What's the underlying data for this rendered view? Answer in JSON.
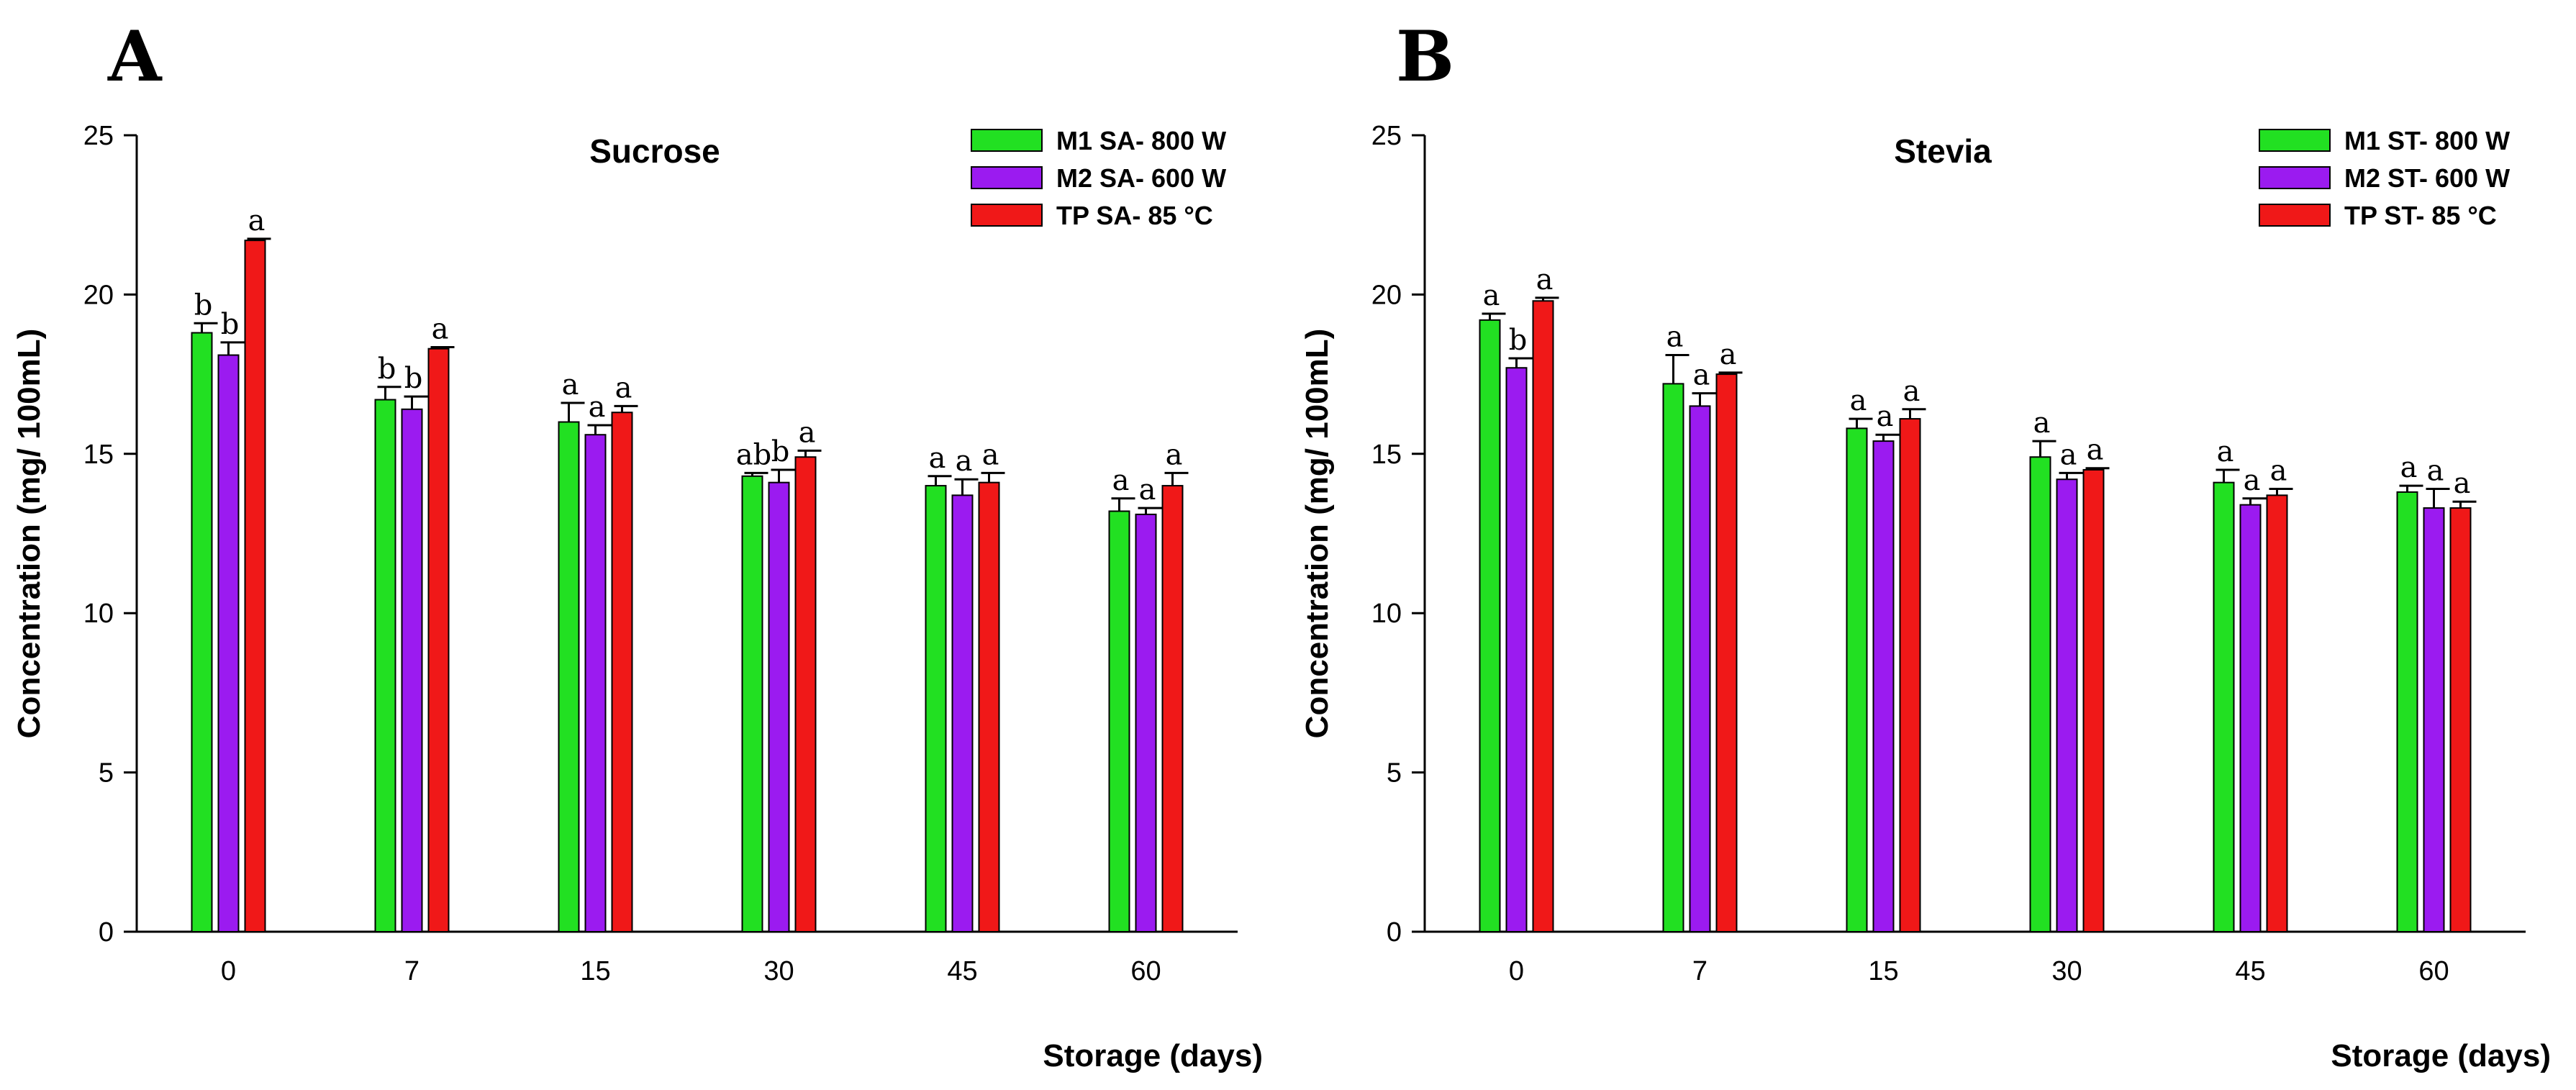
{
  "chart_data": [
    {
      "type": "bar",
      "panel_label": "A",
      "title": "Sucrose",
      "xlabel": "Storage (days)",
      "ylabel": "Concentration (mg/ 100mL)",
      "ylim": [
        0,
        25
      ],
      "yticks": [
        "0",
        "5",
        "10",
        "15",
        "20",
        "25"
      ],
      "categories": [
        "0",
        "7",
        "15",
        "30",
        "45",
        "60"
      ],
      "legend_position": "top-right",
      "series": [
        {
          "name": "M1 SA- 800 W",
          "color": "#22e022",
          "values": [
            18.8,
            16.7,
            16.0,
            14.3,
            14.0,
            13.2
          ],
          "errors": [
            0.3,
            0.4,
            0.6,
            0.1,
            0.3,
            0.4
          ],
          "labels": [
            "b",
            "b",
            "a",
            "ab",
            "a",
            "a"
          ]
        },
        {
          "name": "M2 SA- 600 W",
          "color": "#9b1bf0",
          "values": [
            18.1,
            16.4,
            15.6,
            14.1,
            13.7,
            13.1
          ],
          "errors": [
            0.4,
            0.4,
            0.3,
            0.4,
            0.5,
            0.2
          ],
          "labels": [
            "b",
            "b",
            "a",
            "b",
            "a",
            "a"
          ]
        },
        {
          "name": "TP SA- 85 °C",
          "color": "#f01818",
          "values": [
            21.7,
            18.3,
            16.3,
            14.9,
            14.1,
            14.0
          ],
          "errors": [
            0.05,
            0.05,
            0.2,
            0.2,
            0.3,
            0.4
          ],
          "labels": [
            "a",
            "a",
            "a",
            "a",
            "a",
            "a"
          ]
        }
      ]
    },
    {
      "type": "bar",
      "panel_label": "B",
      "title": "Stevia",
      "xlabel": "Storage (days)",
      "ylabel": "Concentration (mg/ 100mL)",
      "ylim": [
        0,
        25
      ],
      "yticks": [
        "0",
        "5",
        "10",
        "15",
        "20",
        "25"
      ],
      "categories": [
        "0",
        "7",
        "15",
        "30",
        "45",
        "60"
      ],
      "legend_position": "top-right",
      "series": [
        {
          "name": "M1 ST- 800 W",
          "color": "#22e022",
          "values": [
            19.2,
            17.2,
            15.8,
            14.9,
            14.1,
            13.8
          ],
          "errors": [
            0.2,
            0.9,
            0.3,
            0.5,
            0.4,
            0.2
          ],
          "labels": [
            "a",
            "a",
            "a",
            "a",
            "a",
            "a"
          ]
        },
        {
          "name": "M2 ST- 600 W",
          "color": "#9b1bf0",
          "values": [
            17.7,
            16.5,
            15.4,
            14.2,
            13.4,
            13.3
          ],
          "errors": [
            0.3,
            0.4,
            0.2,
            0.2,
            0.2,
            0.6
          ],
          "labels": [
            "b",
            "a",
            "a",
            "a",
            "a",
            "a"
          ]
        },
        {
          "name": "TP ST- 85 °C",
          "color": "#f01818",
          "values": [
            19.8,
            17.5,
            16.1,
            14.5,
            13.7,
            13.3
          ],
          "errors": [
            0.1,
            0.05,
            0.3,
            0.05,
            0.2,
            0.2
          ],
          "labels": [
            "a",
            "a",
            "a",
            "a",
            "a",
            "a"
          ]
        }
      ]
    }
  ]
}
